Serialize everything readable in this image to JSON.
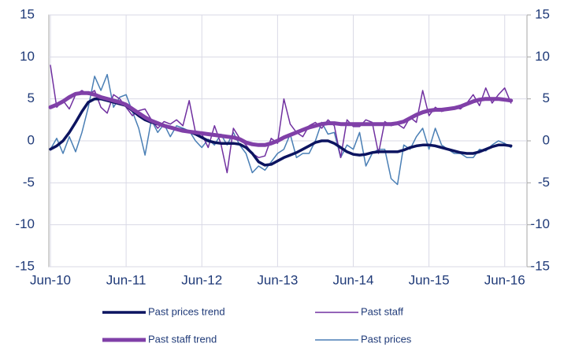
{
  "chart_data": {
    "type": "line",
    "x": [
      "2010-06",
      "2010-07",
      "2010-08",
      "2010-09",
      "2010-10",
      "2010-11",
      "2010-12",
      "2011-01",
      "2011-02",
      "2011-03",
      "2011-04",
      "2011-05",
      "2011-06",
      "2011-07",
      "2011-08",
      "2011-09",
      "2011-10",
      "2011-11",
      "2011-12",
      "2012-01",
      "2012-02",
      "2012-03",
      "2012-04",
      "2012-05",
      "2012-06",
      "2012-07",
      "2012-08",
      "2012-09",
      "2012-10",
      "2012-11",
      "2012-12",
      "2013-01",
      "2013-02",
      "2013-03",
      "2013-04",
      "2013-05",
      "2013-06",
      "2013-07",
      "2013-08",
      "2013-09",
      "2013-10",
      "2013-11",
      "2013-12",
      "2014-01",
      "2014-02",
      "2014-03",
      "2014-04",
      "2014-05",
      "2014-06",
      "2014-07",
      "2014-08",
      "2014-09",
      "2014-10",
      "2014-11",
      "2014-12",
      "2015-01",
      "2015-02",
      "2015-03",
      "2015-04",
      "2015-05",
      "2015-06",
      "2015-07",
      "2015-08",
      "2015-09",
      "2015-10",
      "2015-11",
      "2015-12",
      "2016-01",
      "2016-02",
      "2016-03",
      "2016-04",
      "2016-05",
      "2016-06",
      "2016-07"
    ],
    "xticks": [
      {
        "value": "2010-06",
        "label": "Jun-10"
      },
      {
        "value": "2011-06",
        "label": "Jun-11"
      },
      {
        "value": "2012-06",
        "label": "Jun-12"
      },
      {
        "value": "2013-06",
        "label": "Jun-13"
      },
      {
        "value": "2014-06",
        "label": "Jun-14"
      },
      {
        "value": "2015-06",
        "label": "Jun-15"
      },
      {
        "value": "2016-06",
        "label": "Jun-16"
      }
    ],
    "ylim": [
      -15,
      15
    ],
    "yticks": [
      -15,
      -10,
      -5,
      0,
      5,
      10,
      15
    ],
    "y2lim": [
      -15,
      15
    ],
    "y2ticks": [
      -15,
      -10,
      -5,
      0,
      5,
      10,
      15
    ],
    "grid": true,
    "series": [
      {
        "name": "Past prices",
        "color": "#4a7fb5",
        "width": 1.5,
        "values": [
          -1,
          0.3,
          -1.5,
          0.5,
          -1.3,
          1,
          4,
          7.7,
          6,
          7.9,
          4,
          5.2,
          5.5,
          3.5,
          1.5,
          -1.7,
          2.5,
          1,
          2,
          0.5,
          1.8,
          1.5,
          1.2,
          0,
          -0.8,
          0.2,
          -0.5,
          0.8,
          -0.5,
          1,
          -0.5,
          -1.5,
          -3.8,
          -3,
          -3.5,
          -2.5,
          -1.5,
          -1,
          0.8,
          -2,
          -1.5,
          -1.5,
          0,
          2.2,
          0.8,
          1,
          -2,
          -0.5,
          -1,
          1,
          -3,
          -1.5,
          -1,
          -1,
          -4.5,
          -5.2,
          -0.5,
          -1,
          0.5,
          1.5,
          -1,
          1.5,
          -0.5,
          -1,
          -1.5,
          -1.5,
          -2,
          -2,
          -1,
          -1.2,
          -0.5,
          0,
          -0.3,
          -0.8
        ]
      },
      {
        "name": "Past staff",
        "color": "#7030a0",
        "width": 1.5,
        "axis": "y2",
        "values": [
          9,
          4,
          4.8,
          3.8,
          5.5,
          6,
          5.5,
          6,
          4,
          3.3,
          5.5,
          5,
          4,
          3,
          3.6,
          3.8,
          2.5,
          1.5,
          2.3,
          2,
          2.5,
          1.8,
          4.8,
          1,
          0.8,
          -0.8,
          1.8,
          -0.3,
          -3.8,
          1.5,
          0.3,
          -0.5,
          -1.5,
          -2,
          -1.8,
          0.3,
          -0.3,
          5,
          2,
          1,
          0.5,
          1.8,
          2.2,
          1.5,
          2.5,
          1.8,
          -2,
          2.5,
          1.7,
          1.7,
          2.5,
          2.2,
          -1.5,
          2.3,
          1.8,
          2,
          1.5,
          2.8,
          2.2,
          6,
          3,
          4,
          3.5,
          3.7,
          4,
          3.8,
          4.5,
          5.5,
          4.2,
          6.3,
          4.5,
          5.5,
          6.3,
          4.5
        ]
      },
      {
        "name": "Past prices trend",
        "color": "#0c1460",
        "width": 3.5,
        "values": [
          -1,
          -0.6,
          0,
          1,
          2.2,
          3.5,
          4.6,
          5,
          5,
          4.8,
          4.6,
          4.4,
          4.2,
          3.6,
          3,
          2.5,
          2.2,
          2,
          1.8,
          1.6,
          1.4,
          1.3,
          1.1,
          0.8,
          0.4,
          0,
          -0.2,
          -0.3,
          -0.3,
          -0.3,
          -0.4,
          -0.8,
          -1.5,
          -2.5,
          -2.9,
          -2.8,
          -2.4,
          -2,
          -1.7,
          -1.4,
          -1,
          -0.6,
          -0.2,
          0,
          0,
          -0.3,
          -0.8,
          -1.3,
          -1.6,
          -1.7,
          -1.6,
          -1.4,
          -1.3,
          -1.3,
          -1.3,
          -1.3,
          -1.1,
          -0.8,
          -0.6,
          -0.5,
          -0.5,
          -0.6,
          -0.8,
          -1,
          -1.2,
          -1.4,
          -1.5,
          -1.5,
          -1.3,
          -1,
          -0.7,
          -0.5,
          -0.5,
          -0.6
        ]
      },
      {
        "name": "Past staff trend",
        "color": "#8040a8",
        "width": 5,
        "axis": "y2",
        "values": [
          4,
          4.3,
          4.7,
          5.2,
          5.6,
          5.7,
          5.7,
          5.5,
          5.2,
          5,
          4.8,
          4.6,
          4.3,
          3.8,
          3.3,
          2.8,
          2.4,
          2.1,
          1.8,
          1.6,
          1.4,
          1.2,
          1.1,
          1,
          0.9,
          0.8,
          0.7,
          0.6,
          0.5,
          0.4,
          0.2,
          -0.2,
          -0.4,
          -0.5,
          -0.5,
          -0.3,
          0,
          0.4,
          0.7,
          1,
          1.3,
          1.6,
          1.8,
          2,
          2.1,
          2.1,
          2,
          2,
          2,
          2,
          2,
          2,
          2,
          2,
          2,
          2.1,
          2.3,
          2.7,
          3.1,
          3.4,
          3.6,
          3.7,
          3.7,
          3.8,
          3.9,
          4.1,
          4.4,
          4.7,
          4.9,
          5,
          5,
          5,
          4.9,
          4.8
        ]
      }
    ]
  }
}
